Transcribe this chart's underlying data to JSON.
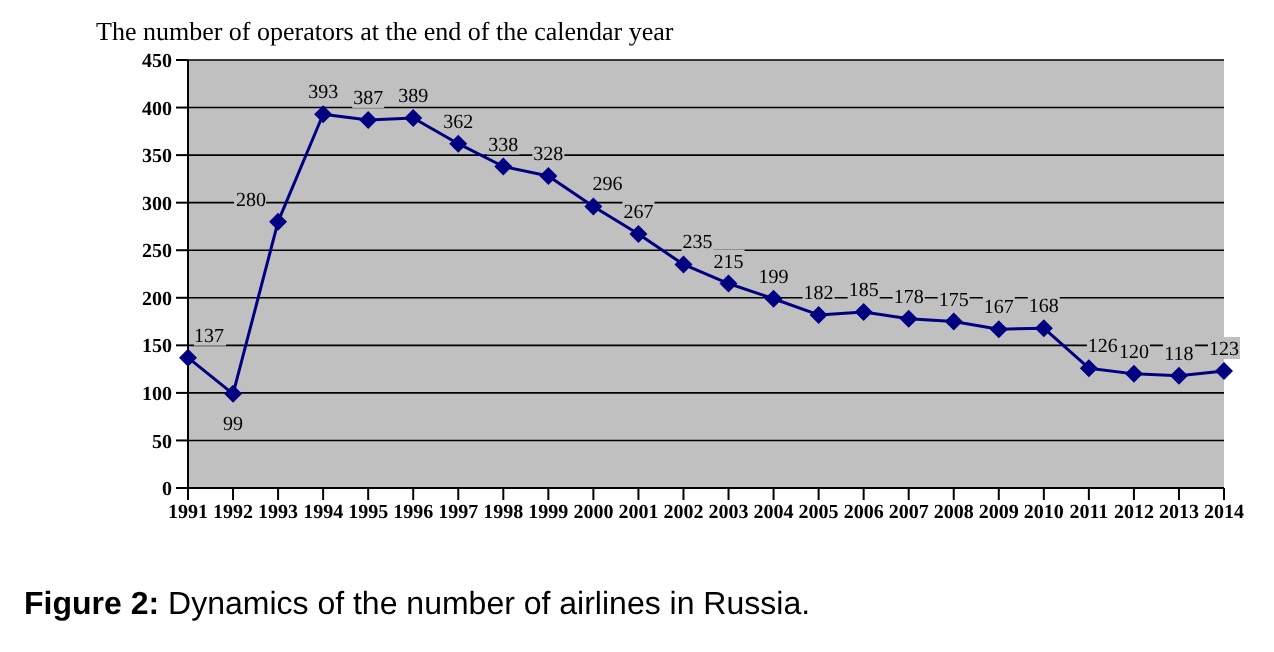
{
  "chart_data": {
    "type": "line",
    "title": "The number of operators at the end of the calendar year",
    "categories": [
      "1991",
      "1992",
      "1993",
      "1994",
      "1995",
      "1996",
      "1997",
      "1998",
      "1999",
      "2000",
      "2001",
      "2002",
      "2003",
      "2004",
      "2005",
      "2006",
      "2007",
      "2008",
      "2009",
      "2010",
      "2011",
      "2012",
      "2013",
      "2014"
    ],
    "series": [
      {
        "color": "#000080",
        "values": [
          137,
          99,
          280,
          393,
          387,
          389,
          362,
          338,
          328,
          296,
          267,
          235,
          215,
          199,
          182,
          185,
          178,
          175,
          167,
          168,
          126,
          120,
          118,
          123
        ]
      }
    ],
    "ylim": [
      0,
      450
    ],
    "yticks": [
      0,
      50,
      100,
      150,
      200,
      250,
      300,
      350,
      400,
      450
    ],
    "grid": "y",
    "marker": "diamond",
    "line_style": "solid",
    "data_labels": true,
    "legend": false,
    "annotations": [
      "Figure 2: Dynamics of the number of airlines in Russia."
    ]
  }
}
